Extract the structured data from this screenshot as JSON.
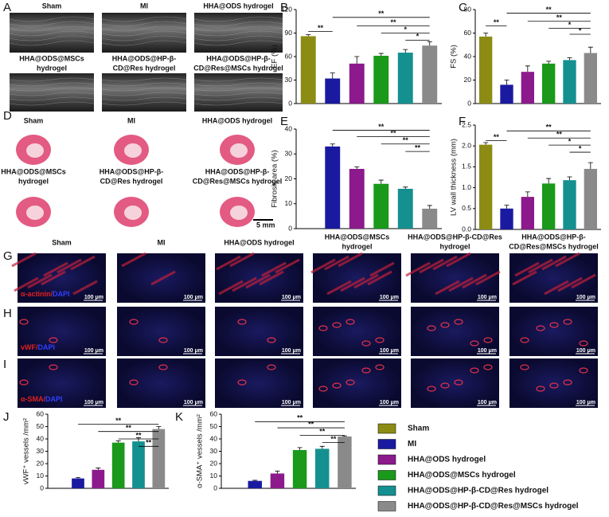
{
  "chart_data": [
    {
      "type": "bar",
      "ylabel": "EF (%)",
      "values": [
        86,
        32,
        51,
        61,
        65,
        74
      ],
      "errors": [
        2,
        7,
        9,
        3,
        4,
        5
      ],
      "ylim": [
        0,
        120
      ],
      "yticks": [
        0,
        30,
        60,
        90,
        120
      ],
      "annotations": [
        {
          "from": 0,
          "to": 1,
          "label": "**",
          "y": 92
        },
        {
          "from": 1,
          "to": 5,
          "label": "**",
          "y": 110
        },
        {
          "from": 2,
          "to": 5,
          "label": "**",
          "y": 99
        },
        {
          "from": 3,
          "to": 5,
          "label": "*",
          "y": 90
        },
        {
          "from": 4,
          "to": 5,
          "label": "*",
          "y": 81
        }
      ]
    },
    {
      "type": "bar",
      "ylabel": "FS (%)",
      "values": [
        57,
        16,
        27,
        34,
        37,
        43
      ],
      "errors": [
        3,
        4,
        5,
        2,
        2,
        5
      ],
      "ylim": [
        0,
        80
      ],
      "yticks": [
        0,
        20,
        40,
        60,
        80
      ],
      "annotations": [
        {
          "from": 0,
          "to": 1,
          "label": "**",
          "y": 66
        },
        {
          "from": 1,
          "to": 5,
          "label": "**",
          "y": 77
        },
        {
          "from": 2,
          "to": 5,
          "label": "**",
          "y": 70
        },
        {
          "from": 3,
          "to": 5,
          "label": "*",
          "y": 64
        },
        {
          "from": 4,
          "to": 5,
          "label": "*",
          "y": 59
        }
      ]
    },
    {
      "type": "bar",
      "ylabel": "Fibrosis area (%)",
      "values": [
        null,
        33,
        24,
        18,
        16,
        8
      ],
      "errors": [
        null,
        1,
        0.8,
        1.5,
        0.7,
        1.3
      ],
      "ylim": [
        0,
        40
      ],
      "yticks": [
        0,
        10,
        20,
        30,
        40
      ],
      "annotations": [
        {
          "from": 1,
          "to": 5,
          "label": "**",
          "y": 39.5
        },
        {
          "from": 2,
          "to": 5,
          "label": "**",
          "y": 37
        },
        {
          "from": 3,
          "to": 5,
          "label": "**",
          "y": 34
        },
        {
          "from": 4,
          "to": 5,
          "label": "**",
          "y": 31
        }
      ]
    },
    {
      "type": "bar",
      "ylabel": "LV wall thickness (mm)",
      "values": [
        2.03,
        0.5,
        0.78,
        1.1,
        1.18,
        1.45
      ],
      "errors": [
        0.05,
        0.08,
        0.12,
        0.12,
        0.08,
        0.15
      ],
      "ylim": [
        0,
        2.5
      ],
      "yticks": [
        {
          "value": 0,
          "label": "0.0"
        },
        0.5,
        {
          "value": 1,
          "label": "1.0"
        },
        1.5,
        {
          "value": 2,
          "label": "2.0"
        },
        2.5
      ],
      "annotations": [
        {
          "from": 0,
          "to": 1,
          "label": "**",
          "y": 2.13
        },
        {
          "from": 1,
          "to": 5,
          "label": "**",
          "y": 2.36
        },
        {
          "from": 2,
          "to": 5,
          "label": "**",
          "y": 2.19
        },
        {
          "from": 3,
          "to": 5,
          "label": "*",
          "y": 2.02
        },
        {
          "from": 4,
          "to": 5,
          "label": "*",
          "y": 1.85
        }
      ]
    },
    {
      "type": "bar",
      "ylabel": "vWF⁺ vessels /mm²",
      "values": [
        null,
        8,
        15,
        37,
        38,
        48
      ],
      "errors": [
        null,
        0.8,
        1.5,
        1.5,
        3,
        2
      ],
      "ylim": [
        0,
        60
      ],
      "yticks": [
        0,
        10,
        20,
        30,
        40,
        50,
        60
      ],
      "annotations": [
        {
          "from": 1,
          "to": 5,
          "label": "**",
          "y": 52
        },
        {
          "from": 2,
          "to": 5,
          "label": "**",
          "y": 46
        },
        {
          "from": 3,
          "to": 5,
          "label": "**",
          "y": 40
        },
        {
          "from": 4,
          "to": 5,
          "label": "**",
          "y": 34
        }
      ]
    },
    {
      "type": "bar",
      "ylabel": "α-SMA⁺ vessels /mm²",
      "values": [
        null,
        6,
        12,
        31,
        32,
        42
      ],
      "errors": [
        null,
        0.5,
        2,
        2,
        2,
        0.5
      ],
      "ylim": [
        0,
        60
      ],
      "yticks": [
        0,
        10,
        20,
        30,
        40,
        50,
        60
      ],
      "annotations": [
        {
          "from": 1,
          "to": 5,
          "label": "**",
          "y": 54
        },
        {
          "from": 2,
          "to": 5,
          "label": "**",
          "y": 49
        },
        {
          "from": 3,
          "to": 5,
          "label": "**",
          "y": 43
        },
        {
          "from": 4,
          "to": 5,
          "label": "**",
          "y": 37
        }
      ]
    }
  ],
  "legend": {
    "items": [
      {
        "name": "Sham",
        "color": "#8c8c14"
      },
      {
        "name": "MI",
        "color": "#1a1aa0"
      },
      {
        "name": "HHA@ODS hydrogel",
        "color": "#8c1a8c"
      },
      {
        "name": "HHA@ODS@MSCs hydrogel",
        "color": "#1a991a"
      },
      {
        "name": "HHA@ODS@HP-β-CD@Res hydrogel",
        "color": "#159090"
      },
      {
        "name": "HHA@ODS@HP-β-CD@Res@MSCs hydrogel",
        "color": "#8a8a8a"
      }
    ]
  },
  "panel_letters": [
    "A",
    "B",
    "C",
    "D",
    "E",
    "F",
    "G",
    "H",
    "I",
    "J",
    "K"
  ],
  "echo": {
    "labels": [
      [
        "Sham"
      ],
      [
        "MI"
      ],
      [
        "HHA@ODS hydrogel"
      ],
      [
        "HHA@ODS@MSCs",
        "hydrogel"
      ],
      [
        "HHA@ODS@HP-β-",
        "CD@Res hydrogel"
      ],
      [
        "HHA@ODS@HP-β-",
        "CD@Res@MSCs hydrogel"
      ]
    ]
  },
  "histology": {
    "labels": [
      [
        "Sham"
      ],
      [
        "MI"
      ],
      [
        "HHA@ODS hydrogel"
      ],
      [
        "HHA@ODS@MSCs",
        "hydrogel"
      ],
      [
        "HHA@ODS@HP-β-",
        "CD@Res hydrogel"
      ],
      [
        "HHA@ODS@HP-β-",
        "CD@Res@MSCs hydrogel"
      ]
    ],
    "scale_bar": "5 mm"
  },
  "staining": {
    "columns": [
      [
        "Sham"
      ],
      [
        "MI"
      ],
      [
        "HHA@ODS hydrogel"
      ],
      [
        "HHA@ODS@MSCs",
        "hydrogel"
      ],
      [
        "HHA@ODS@HP-β-CD@Res",
        "hydrogel"
      ],
      [
        "HHA@ODS@HP-β-",
        "CD@Res@MSCs hydrogel"
      ]
    ],
    "rows": [
      [
        "α-actinin/",
        "DAPI"
      ],
      [
        "vWF/",
        "DAPI"
      ],
      [
        "α-SMA/",
        "DAPI"
      ]
    ],
    "scale_bar": "100 μm"
  }
}
